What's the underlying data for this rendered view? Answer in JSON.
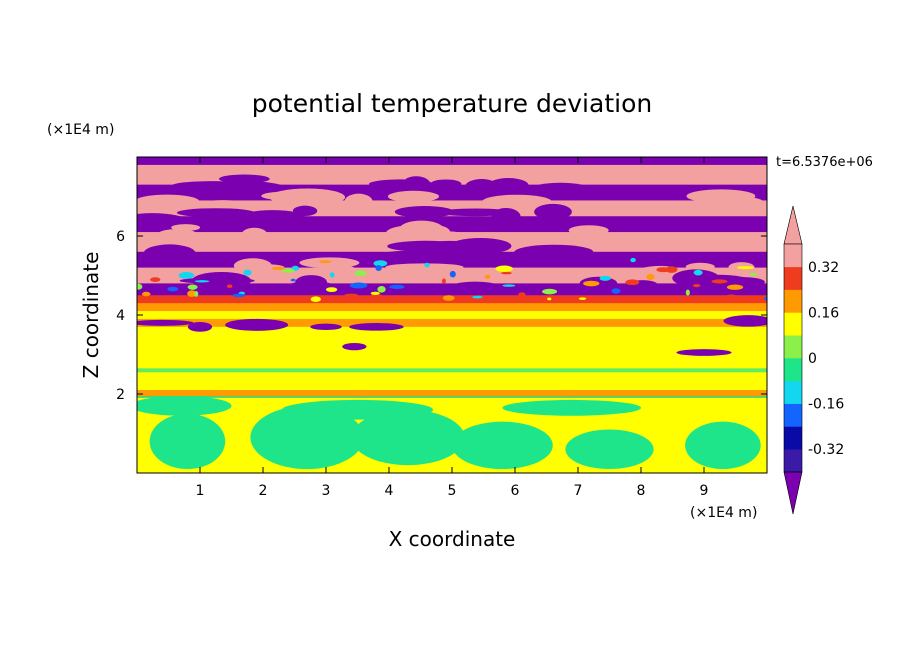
{
  "chart_data": {
    "type": "heatmap",
    "title": "potential temperature deviation",
    "time_label": "t=6.5376e+06",
    "xlabel": "X coordinate",
    "ylabel": "Z coordinate",
    "x_unit": "(×1E4 m)",
    "y_unit": "(×1E4 m)",
    "xlim": [
      0,
      10
    ],
    "ylim": [
      0,
      8
    ],
    "x_ticks": [
      "1",
      "2",
      "3",
      "4",
      "5",
      "6",
      "7",
      "8",
      "9"
    ],
    "y_ticks": [
      "2",
      "4",
      "6"
    ],
    "colorbar": {
      "bounds": [
        -0.4,
        -0.32,
        -0.24,
        -0.16,
        -0.08,
        0,
        0.08,
        0.16,
        0.24,
        0.32,
        0.4
      ],
      "tick_labels": [
        "0.32",
        "0.16",
        "0",
        "-0.16",
        "-0.32"
      ],
      "colors": [
        "#7a00b0",
        "#3a1aa6",
        "#0a0aa6",
        "#1464ff",
        "#12d7ee",
        "#1fe58a",
        "#8cf04a",
        "#ffff00",
        "#ff9a00",
        "#f03c1e",
        "#f2a0a0"
      ],
      "extend": "both"
    },
    "bands": [
      {
        "z_from": 7.8,
        "z_to": 8.0,
        "level": "below_min"
      },
      {
        "z_from": 7.3,
        "z_to": 7.8,
        "level": "above_max"
      },
      {
        "z_from": 6.9,
        "z_to": 7.3,
        "level": "below_min"
      },
      {
        "z_from": 6.5,
        "z_to": 6.9,
        "level": "above_max"
      },
      {
        "z_from": 6.1,
        "z_to": 6.5,
        "level": "below_min"
      },
      {
        "z_from": 5.6,
        "z_to": 6.1,
        "level": "above_max"
      },
      {
        "z_from": 5.2,
        "z_to": 5.6,
        "level": "below_min"
      },
      {
        "z_from": 4.8,
        "z_to": 5.2,
        "level": "above_max"
      },
      {
        "z_from": 4.5,
        "z_to": 4.8,
        "level": "below_min"
      },
      {
        "z_from": 4.3,
        "z_to": 4.5,
        "level": "0.24"
      },
      {
        "z_from": 4.1,
        "z_to": 4.3,
        "level": "0.16"
      },
      {
        "z_from": 3.9,
        "z_to": 4.1,
        "level": "0.08"
      },
      {
        "z_from": 3.7,
        "z_to": 3.9,
        "level": "0.16"
      },
      {
        "z_from": 3.4,
        "z_to": 3.7,
        "level": "0.08"
      },
      {
        "z_from": 2.1,
        "z_to": 3.4,
        "level": "0.08"
      },
      {
        "z_from": 1.9,
        "z_to": 2.1,
        "level": "0.16"
      },
      {
        "z_from": 0.0,
        "z_to": 1.9,
        "level": "0.08"
      }
    ]
  }
}
